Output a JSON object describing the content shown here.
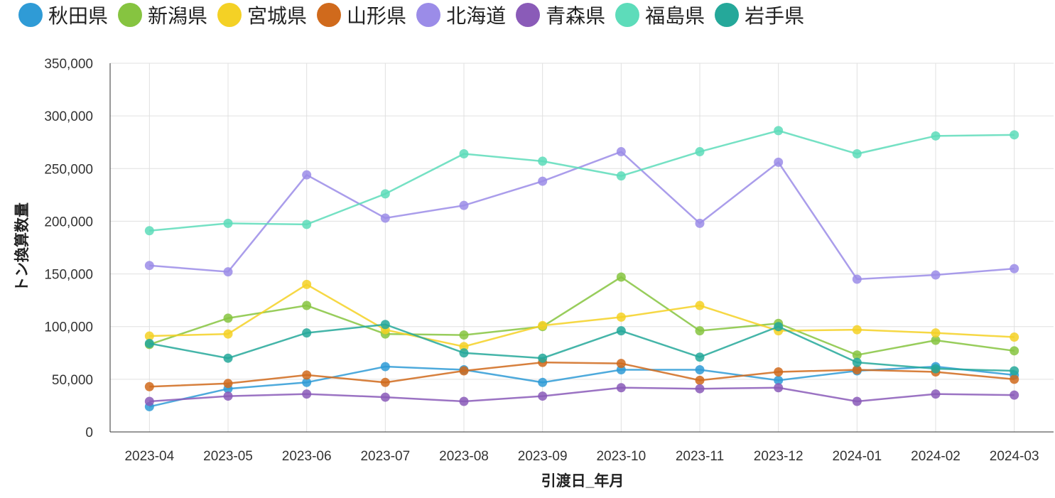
{
  "chart_data": {
    "type": "line",
    "title": "",
    "xlabel": "引渡日_年月",
    "ylabel": "トン換算数量",
    "ylim": [
      0,
      350000
    ],
    "yticks": [
      "0",
      "50,000",
      "100,000",
      "150,000",
      "200,000",
      "250,000",
      "300,000",
      "350,000"
    ],
    "grid": true,
    "legend_position": "top-left",
    "categories": [
      "2023-04",
      "2023-05",
      "2023-06",
      "2023-07",
      "2023-08",
      "2023-09",
      "2023-10",
      "2023-11",
      "2023-12",
      "2024-01",
      "2024-02",
      "2024-03"
    ],
    "series": [
      {
        "name": "秋田県",
        "color": "#2f9bd6",
        "values": [
          24000,
          41000,
          47000,
          62000,
          59000,
          47000,
          59000,
          59000,
          49000,
          58000,
          62000,
          54000
        ]
      },
      {
        "name": "新潟県",
        "color": "#86c440",
        "values": [
          83000,
          108000,
          120000,
          93000,
          92000,
          100000,
          147000,
          96000,
          103000,
          73000,
          87000,
          77000
        ]
      },
      {
        "name": "宮城県",
        "color": "#f4d125",
        "values": [
          91000,
          93000,
          140000,
          97000,
          81000,
          101000,
          109000,
          120000,
          96000,
          97000,
          94000,
          90000
        ]
      },
      {
        "name": "山形県",
        "color": "#d06a1c",
        "values": [
          43000,
          46000,
          54000,
          47000,
          58000,
          66000,
          65000,
          49000,
          57000,
          59000,
          57000,
          50000
        ]
      },
      {
        "name": "北海道",
        "color": "#9b8ce8",
        "values": [
          158000,
          152000,
          244000,
          203000,
          215000,
          238000,
          266000,
          198000,
          256000,
          145000,
          149000,
          155000
        ]
      },
      {
        "name": "青森県",
        "color": "#8a5bb8",
        "values": [
          29000,
          34000,
          36000,
          33000,
          29000,
          34000,
          42000,
          41000,
          42000,
          29000,
          36000,
          35000
        ]
      },
      {
        "name": "福島県",
        "color": "#5ddcba",
        "values": [
          191000,
          198000,
          197000,
          226000,
          264000,
          257000,
          243000,
          266000,
          286000,
          264000,
          281000,
          282000
        ]
      },
      {
        "name": "岩手県",
        "color": "#25a89a",
        "values": [
          84000,
          70000,
          94000,
          102000,
          75000,
          70000,
          96000,
          71000,
          100000,
          66000,
          60000,
          58000
        ]
      }
    ]
  }
}
